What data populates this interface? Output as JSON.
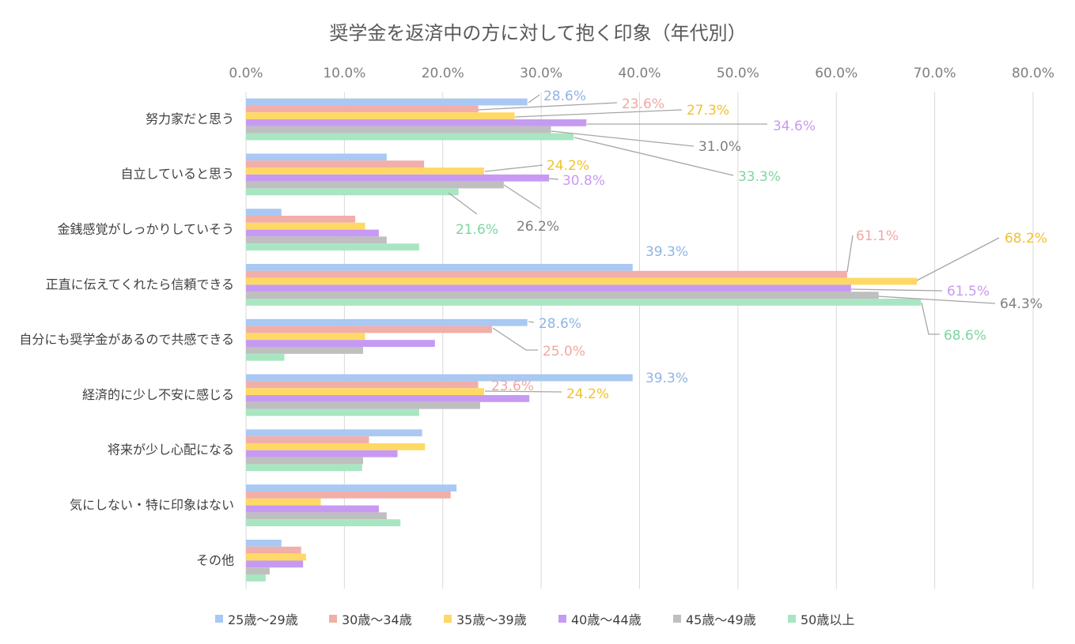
{
  "chart_data": {
    "type": "bar",
    "orientation": "horizontal",
    "title": "奨学金を返済中の方に対して抱く印象（年代別）",
    "xlabel": "",
    "ylabel": "",
    "xlim": [
      0,
      80
    ],
    "tick_values": [
      0,
      10,
      20,
      30,
      40,
      50,
      60,
      70,
      80
    ],
    "tick_labels": [
      "0.0%",
      "10.0%",
      "20.0%",
      "30.0%",
      "40.0%",
      "50.0%",
      "60.0%",
      "70.0%",
      "80.0%"
    ],
    "axis_position": "top",
    "grid": true,
    "legend_position": "bottom",
    "categories": [
      "努力家だと思う",
      "自立していると思う",
      "金銭感覚がしっかりしていそう",
      "正直に伝えてくれたら信頼できる",
      "自分にも奨学金があるので共感できる",
      "経済的に少し不安に感じる",
      "将来が少し心配になる",
      "気にしない・特に印象はない",
      "その他"
    ],
    "series": [
      {
        "name": "25歳～29歳",
        "color": "#a9c8f2",
        "label_color": "#8fb4e3",
        "values": [
          28.6,
          14.3,
          3.6,
          39.3,
          28.6,
          39.3,
          17.9,
          21.4,
          3.6
        ]
      },
      {
        "name": "30歳～34歳",
        "color": "#f2aea9",
        "label_color": "#f0a8a2",
        "values": [
          23.6,
          18.1,
          11.1,
          61.1,
          25.0,
          23.6,
          12.5,
          20.8,
          5.6
        ]
      },
      {
        "name": "35歳～39歳",
        "color": "#ffd966",
        "label_color": "#f2c12e",
        "values": [
          27.3,
          24.2,
          12.1,
          68.2,
          12.1,
          24.2,
          18.2,
          7.6,
          6.1
        ]
      },
      {
        "name": "40歳～44歳",
        "color": "#c69af2",
        "label_color": "#c89af0",
        "values": [
          34.6,
          30.8,
          13.5,
          61.5,
          19.2,
          28.8,
          15.4,
          13.5,
          5.8
        ]
      },
      {
        "name": "45歳～49歳",
        "color": "#bfbfbf",
        "label_color": "#7f7f7f",
        "values": [
          31.0,
          26.2,
          14.3,
          64.3,
          11.9,
          23.8,
          11.9,
          14.3,
          2.4
        ]
      },
      {
        "name": "50歳以上",
        "color": "#a8e6c2",
        "label_color": "#7dd6a0",
        "values": [
          33.3,
          21.6,
          17.6,
          68.6,
          3.9,
          17.6,
          11.8,
          15.7,
          2.0
        ]
      }
    ],
    "data_labels": [
      {
        "series": 0,
        "category": 0,
        "text": "28.6%"
      },
      {
        "series": 1,
        "category": 0,
        "text": "23.6%"
      },
      {
        "series": 2,
        "category": 0,
        "text": "27.3%"
      },
      {
        "series": 3,
        "category": 0,
        "text": "34.6%"
      },
      {
        "series": 4,
        "category": 0,
        "text": "31.0%"
      },
      {
        "series": 5,
        "category": 0,
        "text": "33.3%"
      },
      {
        "series": 2,
        "category": 1,
        "text": "24.2%"
      },
      {
        "series": 3,
        "category": 1,
        "text": "30.8%"
      },
      {
        "series": 5,
        "category": 1,
        "text": "21.6%"
      },
      {
        "series": 4,
        "category": 1,
        "text": "26.2%"
      },
      {
        "series": 0,
        "category": 3,
        "text": "39.3%"
      },
      {
        "series": 1,
        "category": 3,
        "text": "61.1%"
      },
      {
        "series": 2,
        "category": 3,
        "text": "68.2%"
      },
      {
        "series": 3,
        "category": 3,
        "text": "61.5%"
      },
      {
        "series": 4,
        "category": 3,
        "text": "64.3%"
      },
      {
        "series": 5,
        "category": 3,
        "text": "68.6%"
      },
      {
        "series": 0,
        "category": 4,
        "text": "28.6%"
      },
      {
        "series": 1,
        "category": 4,
        "text": "25.0%"
      },
      {
        "series": 0,
        "category": 5,
        "text": "39.3%"
      },
      {
        "series": 1,
        "category": 5,
        "text": "23.6%"
      },
      {
        "series": 2,
        "category": 5,
        "text": "24.2%"
      }
    ]
  }
}
